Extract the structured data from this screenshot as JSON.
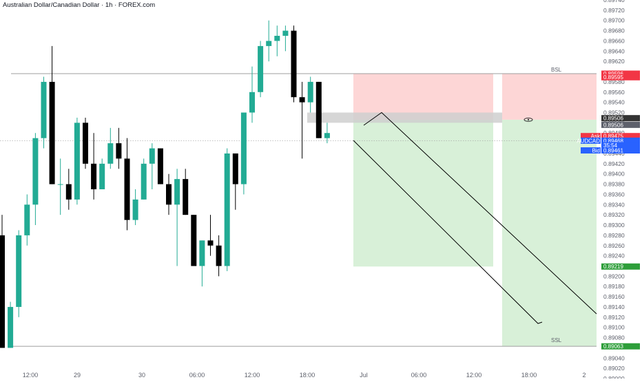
{
  "title": "Australian Dollar/Canadian Dollar · 1h · FOREX.com",
  "colors": {
    "up": "#22ab94",
    "down": "#000000",
    "stop_zone": "#fdd6d6",
    "target_zone": "#d8f0d8",
    "neutral_box": "#cfcfcf",
    "level_line": "#9e9e9e",
    "green_tag": "#2e9e3a",
    "red_tag": "#f23645",
    "blue_tag": "#2962ff",
    "grey_tag": "#5d606b",
    "dark_tag": "#333333"
  },
  "chart_data": {
    "type": "candlestick",
    "symbol": "AUDCAD",
    "timeframe": "1h",
    "ylim": [
      0.89,
      0.8974
    ],
    "y_ticks": [
      "0.89740",
      "0.89720",
      "0.89700",
      "0.89680",
      "0.89660",
      "0.89640",
      "0.89620",
      "0.89580",
      "0.89560",
      "0.89540",
      "0.89520",
      "0.89500",
      "0.89480",
      "0.89440",
      "0.89420",
      "0.89400",
      "0.89380",
      "0.89360",
      "0.89340",
      "0.89320",
      "0.89300",
      "0.89280",
      "0.89260",
      "0.89240",
      "0.89200",
      "0.89180",
      "0.89160",
      "0.89140",
      "0.89120",
      "0.89100",
      "0.89080",
      "0.89040",
      "0.89020",
      "0.89000"
    ],
    "x_ticks": [
      "12:00",
      "29",
      "30",
      "06:00",
      "12:00",
      "18:00",
      "Jul",
      "06:00",
      "12:00",
      "18:00",
      "2"
    ],
    "candles": [
      {
        "o": 0.8928,
        "h": 0.8932,
        "l": 0.8906,
        "c": 0.8906
      },
      {
        "o": 0.8906,
        "h": 0.8915,
        "l": 0.8906,
        "c": 0.8914
      },
      {
        "o": 0.8914,
        "h": 0.8929,
        "l": 0.8912,
        "c": 0.8928
      },
      {
        "o": 0.8928,
        "h": 0.8936,
        "l": 0.8926,
        "c": 0.8934
      },
      {
        "o": 0.8934,
        "h": 0.8948,
        "l": 0.893,
        "c": 0.8947
      },
      {
        "o": 0.8947,
        "h": 0.8959,
        "l": 0.8945,
        "c": 0.8958
      },
      {
        "o": 0.8958,
        "h": 0.8965,
        "l": 0.8938,
        "c": 0.8938
      },
      {
        "o": 0.8938,
        "h": 0.8943,
        "l": 0.8932,
        "c": 0.8938
      },
      {
        "o": 0.8938,
        "h": 0.8941,
        "l": 0.8933,
        "c": 0.8935
      },
      {
        "o": 0.8935,
        "h": 0.8951,
        "l": 0.8934,
        "c": 0.895
      },
      {
        "o": 0.895,
        "h": 0.8951,
        "l": 0.8941,
        "c": 0.8942
      },
      {
        "o": 0.8942,
        "h": 0.8948,
        "l": 0.8935,
        "c": 0.8937
      },
      {
        "o": 0.8937,
        "h": 0.8943,
        "l": 0.8937,
        "c": 0.8942
      },
      {
        "o": 0.8942,
        "h": 0.8949,
        "l": 0.8941,
        "c": 0.8946
      },
      {
        "o": 0.8946,
        "h": 0.8949,
        "l": 0.8941,
        "c": 0.8943
      },
      {
        "o": 0.8943,
        "h": 0.8947,
        "l": 0.8929,
        "c": 0.8931
      },
      {
        "o": 0.8931,
        "h": 0.8937,
        "l": 0.893,
        "c": 0.8935
      },
      {
        "o": 0.8935,
        "h": 0.8943,
        "l": 0.8935,
        "c": 0.8942
      },
      {
        "o": 0.8942,
        "h": 0.8946,
        "l": 0.8937,
        "c": 0.8945
      },
      {
        "o": 0.8945,
        "h": 0.8945,
        "l": 0.8938,
        "c": 0.8938
      },
      {
        "o": 0.8938,
        "h": 0.894,
        "l": 0.8932,
        "c": 0.8934
      },
      {
        "o": 0.8934,
        "h": 0.8941,
        "l": 0.8922,
        "c": 0.8939
      },
      {
        "o": 0.8939,
        "h": 0.8941,
        "l": 0.8932,
        "c": 0.8932
      },
      {
        "o": 0.8932,
        "h": 0.8932,
        "l": 0.8922,
        "c": 0.8922
      },
      {
        "o": 0.8922,
        "h": 0.8927,
        "l": 0.8918,
        "c": 0.8927
      },
      {
        "o": 0.8927,
        "h": 0.8932,
        "l": 0.8924,
        "c": 0.8926
      },
      {
        "o": 0.8926,
        "h": 0.8928,
        "l": 0.892,
        "c": 0.8922
      },
      {
        "o": 0.8922,
        "h": 0.8945,
        "l": 0.8921,
        "c": 0.8944
      },
      {
        "o": 0.8944,
        "h": 0.8944,
        "l": 0.8933,
        "c": 0.8938
      },
      {
        "o": 0.8938,
        "h": 0.8952,
        "l": 0.8936,
        "c": 0.8952
      },
      {
        "o": 0.8952,
        "h": 0.8961,
        "l": 0.895,
        "c": 0.8956
      },
      {
        "o": 0.8956,
        "h": 0.8966,
        "l": 0.8955,
        "c": 0.8965
      },
      {
        "o": 0.8965,
        "h": 0.897,
        "l": 0.8962,
        "c": 0.8966
      },
      {
        "o": 0.8966,
        "h": 0.8969,
        "l": 0.8963,
        "c": 0.8967
      },
      {
        "o": 0.8967,
        "h": 0.8969,
        "l": 0.8964,
        "c": 0.8968
      },
      {
        "o": 0.8968,
        "h": 0.8969,
        "l": 0.8954,
        "c": 0.8955
      },
      {
        "o": 0.8955,
        "h": 0.8958,
        "l": 0.8943,
        "c": 0.8954
      },
      {
        "o": 0.8954,
        "h": 0.8959,
        "l": 0.8952,
        "c": 0.8958
      },
      {
        "o": 0.8958,
        "h": 0.8958,
        "l": 0.8947,
        "c": 0.8947
      },
      {
        "o": 0.8947,
        "h": 0.895,
        "l": 0.8946,
        "c": 0.8948
      }
    ],
    "levels": [
      {
        "name": "BSL",
        "price": 0.89596
      },
      {
        "name": "SSL",
        "price": 0.89063
      }
    ],
    "price_tags": [
      {
        "text": "0.89596",
        "price": 0.89596,
        "color": "red"
      },
      {
        "text": "0.89595",
        "price": 0.89589,
        "color": "red"
      },
      {
        "text": "0.89506",
        "price": 0.89509,
        "color": "dark"
      },
      {
        "text": "0.89506",
        "price": 0.89496,
        "color": "grey"
      },
      {
        "text": "0.89475",
        "price": 0.89474,
        "color": "red",
        "label": "Ask"
      },
      {
        "text": "0.89468",
        "price": 0.89465,
        "color": "blue",
        "label": "AUDCAD"
      },
      {
        "text": "35:54",
        "price": 0.89456,
        "color": "blue"
      },
      {
        "text": "0.89461",
        "price": 0.89446,
        "color": "blue",
        "label": "Bid"
      },
      {
        "text": "0.89219",
        "price": 0.89219,
        "color": "green"
      },
      {
        "text": "0.89063",
        "price": 0.89063,
        "color": "green"
      }
    ],
    "positions": [
      {
        "entry": 0.89506,
        "stop": 0.89596,
        "target": 0.89219
      },
      {
        "entry": 0.89506,
        "stop": 0.89596,
        "target": 0.89063
      }
    ],
    "grid": false,
    "legend": "none"
  },
  "labels": {
    "bsl": "BSL",
    "ssl": "SSL"
  }
}
